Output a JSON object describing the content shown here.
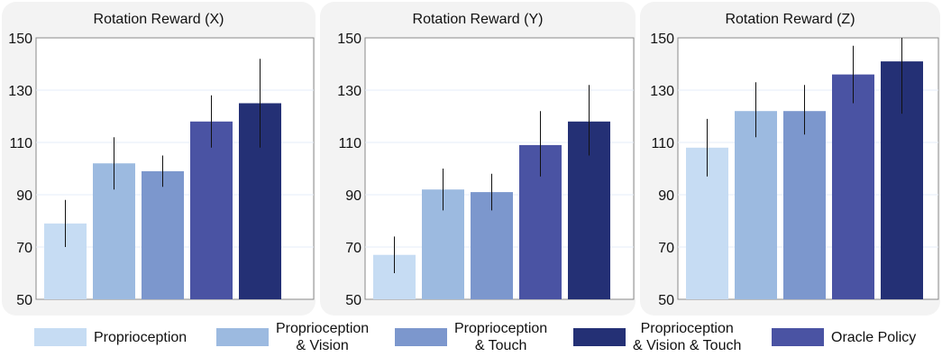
{
  "legend": [
    {
      "label": "Proprioception",
      "color": "#c6dcf3",
      "key": "proprio"
    },
    {
      "label": "Proprioception\n& Vision",
      "color": "#9cbae0",
      "key": "vision"
    },
    {
      "label": "Proprioception\n& Touch",
      "color": "#7c97cd",
      "key": "touch"
    },
    {
      "label": "Proprioception\n& Vision & Touch",
      "color": "#243075",
      "key": "vistouch"
    },
    {
      "label": "Oracle Policy",
      "color": "#4a53a3",
      "key": "oracle"
    }
  ],
  "chart_data": [
    {
      "type": "bar",
      "title": "Rotation Reward (X)",
      "categories": [
        "Proprioception",
        "Proprioception & Vision",
        "Proprioception & Touch",
        "Oracle Policy",
        "Proprioception & Vision & Touch"
      ],
      "colors": [
        "#c6dcf3",
        "#9cbae0",
        "#7c97cd",
        "#4a53a3",
        "#243075"
      ],
      "values": [
        79,
        102,
        99,
        118,
        125
      ],
      "error_low": [
        70,
        92,
        93,
        108,
        108
      ],
      "error_high": [
        88,
        112,
        105,
        128,
        142
      ],
      "ylim": [
        50,
        150
      ],
      "yticks": [
        50,
        70,
        90,
        110,
        130,
        150
      ]
    },
    {
      "type": "bar",
      "title": "Rotation Reward (Y)",
      "categories": [
        "Proprioception",
        "Proprioception & Vision",
        "Proprioception & Touch",
        "Oracle Policy",
        "Proprioception & Vision & Touch"
      ],
      "colors": [
        "#c6dcf3",
        "#9cbae0",
        "#7c97cd",
        "#4a53a3",
        "#243075"
      ],
      "values": [
        67,
        92,
        91,
        109,
        118
      ],
      "error_low": [
        60,
        84,
        84,
        97,
        105
      ],
      "error_high": [
        74,
        100,
        98,
        122,
        132
      ],
      "ylim": [
        50,
        150
      ],
      "yticks": [
        50,
        70,
        90,
        110,
        130,
        150
      ]
    },
    {
      "type": "bar",
      "title": "Rotation Reward (Z)",
      "categories": [
        "Proprioception",
        "Proprioception & Vision",
        "Proprioception & Touch",
        "Oracle Policy",
        "Proprioception & Vision & Touch"
      ],
      "colors": [
        "#c6dcf3",
        "#9cbae0",
        "#7c97cd",
        "#4a53a3",
        "#243075"
      ],
      "values": [
        108,
        122,
        122,
        136,
        141
      ],
      "error_low": [
        97,
        112,
        113,
        125,
        121
      ],
      "error_high": [
        119,
        133,
        132,
        147,
        151
      ],
      "ylim": [
        50,
        150
      ],
      "yticks": [
        50,
        70,
        90,
        110,
        130,
        150
      ]
    }
  ]
}
